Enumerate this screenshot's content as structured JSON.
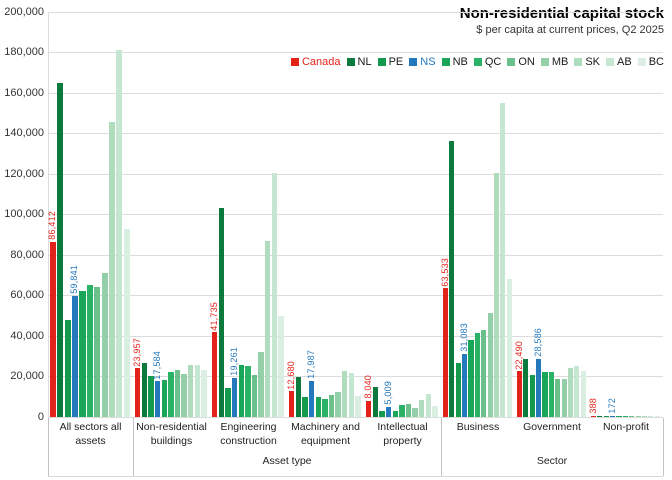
{
  "chart_data": {
    "type": "bar",
    "title": "Non-residential capital stock",
    "subtitle": "$ per capita at current prices, Q2 2025",
    "ylim": [
      0,
      200000
    ],
    "ytick_step": 20000,
    "grid": true,
    "legend_position": "top-right",
    "yticks": [
      "0",
      "20,000",
      "40,000",
      "60,000",
      "80,000",
      "100,000",
      "120,000",
      "140,000",
      "160,000",
      "180,000",
      "200,000"
    ],
    "categories": [
      "All sectors all assets",
      "Non-residential buildings",
      "Engineering construction",
      "Machinery and equipment",
      "Intellectual property",
      "Business",
      "Government",
      "Non-profit"
    ],
    "category_groups": [
      {
        "label": "",
        "span": [
          0,
          0
        ]
      },
      {
        "label": "Asset type",
        "span": [
          1,
          4
        ]
      },
      {
        "label": "Sector",
        "span": [
          5,
          7
        ]
      }
    ],
    "series": [
      {
        "name": "Canada",
        "color": "#e2231a",
        "text_color": "#e2231a",
        "values": [
          86412,
          23957,
          41735,
          12680,
          8040,
          63533,
          22490,
          388
        ],
        "data_labels": [
          "86,412",
          "23,957",
          "41,735",
          "12,680",
          "8,040",
          "63,533",
          "22,490",
          "388"
        ]
      },
      {
        "name": "NL",
        "color": "#0c7a3d",
        "values": [
          165000,
          26500,
          103000,
          19600,
          15000,
          136500,
          28500,
          350
        ]
      },
      {
        "name": "PE",
        "color": "#149a4c",
        "values": [
          48000,
          20200,
          14200,
          10000,
          3000,
          26500,
          20700,
          250
        ]
      },
      {
        "name": "NS",
        "color": "#2478bc",
        "text_color": "#2478bc",
        "values": [
          59841,
          17584,
          19261,
          17987,
          5009,
          31083,
          28586,
          172
        ],
        "data_labels": [
          "59,841",
          "17,584",
          "19,261",
          "17,987",
          "5,009",
          "31,083",
          "28,586",
          "172"
        ]
      },
      {
        "name": "NB",
        "color": "#1aa659",
        "values": [
          62000,
          18300,
          25500,
          10000,
          3000,
          38000,
          22400,
          250
        ]
      },
      {
        "name": "QC",
        "color": "#2bb266",
        "values": [
          65000,
          22000,
          25000,
          9000,
          5800,
          41500,
          22000,
          300
        ]
      },
      {
        "name": "ON",
        "color": "#6cc08c",
        "values": [
          64000,
          23400,
          20700,
          11000,
          6400,
          43000,
          19000,
          300
        ]
      },
      {
        "name": "MB",
        "color": "#93d0aa",
        "values": [
          71000,
          21000,
          32000,
          12200,
          4300,
          51500,
          18600,
          250
        ]
      },
      {
        "name": "SK",
        "color": "#aedcbd",
        "values": [
          145500,
          25800,
          87000,
          22700,
          8500,
          120500,
          24000,
          250
        ]
      },
      {
        "name": "AB",
        "color": "#c5e6d0",
        "values": [
          181000,
          25800,
          120500,
          21600,
          11500,
          155000,
          25200,
          200
        ]
      },
      {
        "name": "BC",
        "color": "#daeee1",
        "values": [
          93000,
          23200,
          50000,
          10400,
          5200,
          68000,
          22700,
          150
        ]
      }
    ]
  }
}
